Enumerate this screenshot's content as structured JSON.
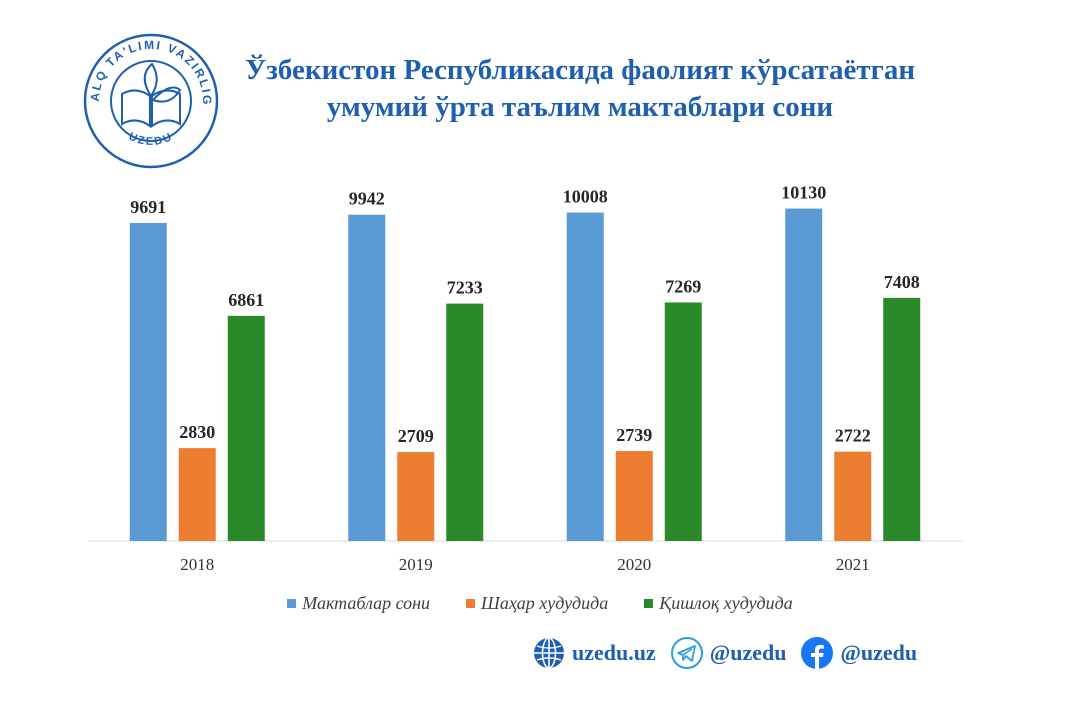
{
  "logo": {
    "text_top": "XALQ TA'LIMI VAZIRLIGI",
    "text_bottom": "UZEDU",
    "color": "#1f5fb0"
  },
  "chart_data": {
    "type": "bar",
    "title": "Ўзбекистон Республикасида фаолият кўрсатаётган умумий ўрта таълим мактаблари сони",
    "xlabel": "",
    "ylabel": "",
    "categories": [
      "2018",
      "2019",
      "2020",
      "2021"
    ],
    "series": [
      {
        "name": "Мактаблар сони",
        "color": "#5b9bd5",
        "values": [
          9691,
          9942,
          10008,
          10130
        ]
      },
      {
        "name": "Шаҳар худудида",
        "color": "#ed7d31",
        "values": [
          2830,
          2709,
          2739,
          2722
        ]
      },
      {
        "name": "Қишлоқ худудида",
        "color": "#2a8a2a",
        "values": [
          6861,
          7233,
          7269,
          7408
        ]
      }
    ],
    "ylim": [
      0,
      11000
    ],
    "grid": false,
    "legend": "bottom",
    "data_labels": true
  },
  "socials": [
    {
      "icon": "globe-icon",
      "text": "uzedu.uz",
      "color": "#1f5fb0"
    },
    {
      "icon": "telegram-icon",
      "text": "@uzedu",
      "color": "#2aa0d8"
    },
    {
      "icon": "facebook-icon",
      "text": "@uzedu",
      "color": "#1877f2"
    }
  ]
}
